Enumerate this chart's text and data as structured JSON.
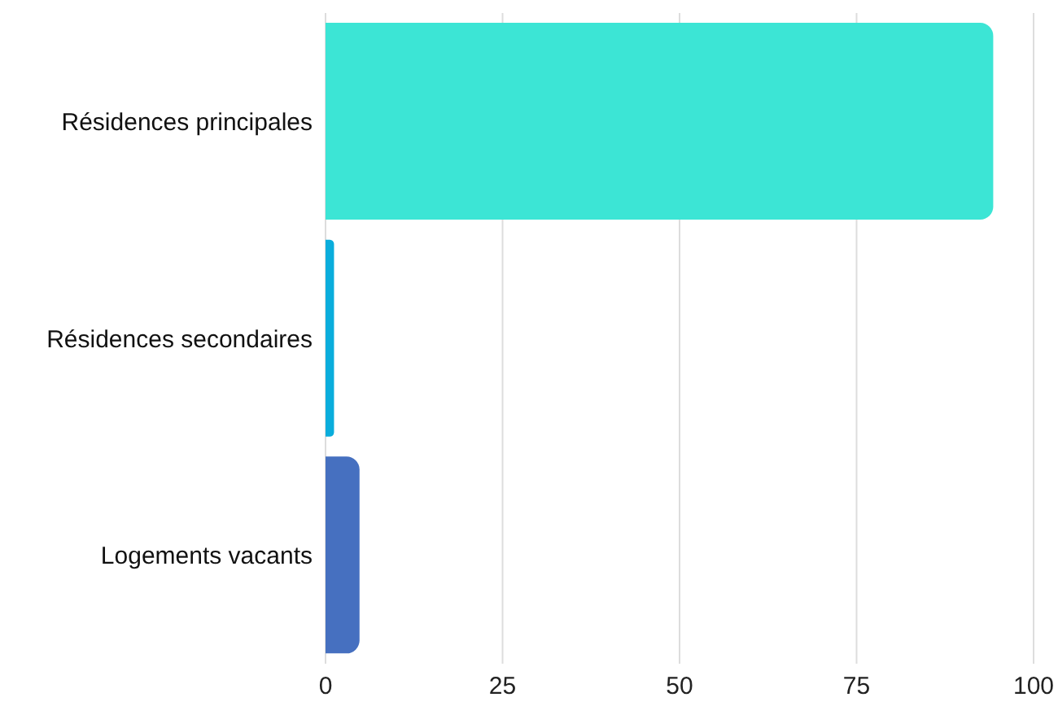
{
  "chart_data": {
    "type": "bar",
    "orientation": "horizontal",
    "categories": [
      "Résidences principales",
      "Résidences secondaires",
      "Logements vacants"
    ],
    "values": [
      94.3,
      1.2,
      4.8
    ],
    "colors": [
      "#3ce5d5",
      "#0aaddc",
      "#4670c0"
    ],
    "xlim": [
      0,
      100
    ],
    "xticks": [
      0,
      25,
      50,
      75,
      100
    ],
    "grid": "x",
    "legend": false
  }
}
